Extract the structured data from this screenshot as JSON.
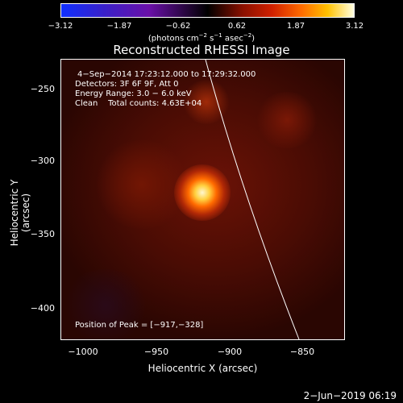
{
  "colorbar": {
    "ticks": [
      "−3.12",
      "−1.87",
      "−0.62",
      "0.62",
      "1.87",
      "3.12"
    ],
    "units_prefix": "(photons cm",
    "units_sup1": "−2",
    "units_mid": " s",
    "units_sup2": "−1",
    "units_mid2": " asec",
    "units_sup3": "−2",
    "units_suffix": ")"
  },
  "title": "Reconstructed RHESSI Image",
  "info": {
    "line1": "4−Sep−2014 17:23:12.000 to 17:29:32.000",
    "line2": "Detectors: 3F 6F 9F, Att 0",
    "line3": "Energy Range: 3.0 − 6.0 keV",
    "line4": "Clean    Total counts: 4.63E+04",
    "peak": "Position of Peak = [−917,−328]"
  },
  "axes": {
    "y_ticks": [
      "−250",
      "−300",
      "−350",
      "−400"
    ],
    "x_ticks": [
      "−1000",
      "−950",
      "−900",
      "−850"
    ],
    "ylabel": "Heliocentric Y (arcsec)",
    "xlabel": "Heliocentric X (arcsec)"
  },
  "footer_date": "2−Jun−2019 06:19"
}
